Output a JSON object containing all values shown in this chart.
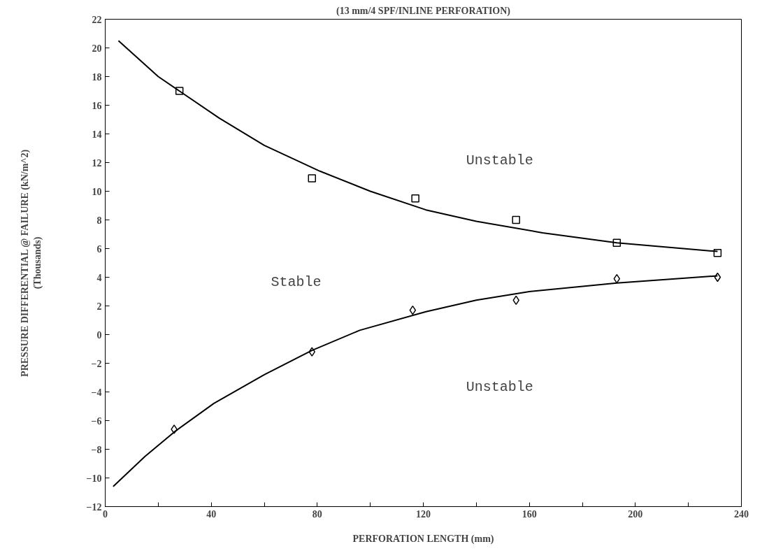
{
  "chart_data": {
    "type": "scatter",
    "title": "(13 mm/4 SPF/INLINE PERFORATION)",
    "xlabel": "PERFORATION LENGTH (mm)",
    "ylabel": "PRESSURE DIFFERENTIAL @ FAILURE (kN/m^2)\n(Thousands)",
    "xlim": [
      0,
      240
    ],
    "ylim": [
      -12,
      22
    ],
    "xticks": [
      0,
      {
        "value": 20,
        "label": null
      },
      40,
      {
        "value": 60,
        "label": null
      },
      80,
      {
        "value": 100,
        "label": null
      },
      120,
      {
        "value": 140,
        "label": null
      },
      160,
      {
        "value": 180,
        "label": null
      },
      200,
      {
        "value": 220,
        "label": null
      },
      240
    ],
    "yticks": [
      -12,
      -10,
      -8,
      -6,
      -4,
      -2,
      0,
      2,
      4,
      6,
      8,
      10,
      12,
      14,
      16,
      18,
      20,
      22
    ],
    "grid": false,
    "series": [
      {
        "marker": "square",
        "color": "#000000",
        "x": [
          28,
          78,
          117,
          155,
          193,
          231
        ],
        "values": [
          17.0,
          10.9,
          9.5,
          8.0,
          6.4,
          5.7
        ]
      },
      {
        "marker": "diamond",
        "color": "#000000",
        "x": [
          26,
          78,
          116,
          155,
          193,
          231
        ],
        "values": [
          -6.6,
          -1.2,
          1.7,
          2.4,
          3.9,
          4.0
        ]
      },
      {
        "type": "line",
        "line_style": "solid",
        "color": "#000000",
        "x": [
          5,
          20,
          43,
          60,
          81,
          100,
          121,
          140,
          165,
          193,
          231
        ],
        "values": [
          20.5,
          18.0,
          15.1,
          13.2,
          11.4,
          10.0,
          8.7,
          7.9,
          7.1,
          6.4,
          5.8
        ]
      },
      {
        "type": "line",
        "line_style": "solid",
        "color": "#000000",
        "x": [
          3,
          15,
          26,
          41,
          60,
          78,
          96,
          121,
          140,
          160,
          193,
          231
        ],
        "values": [
          -10.6,
          -8.5,
          -6.8,
          -4.8,
          -2.8,
          -1.1,
          0.3,
          1.6,
          2.4,
          3.0,
          3.6,
          4.1
        ]
      }
    ],
    "annotations": [
      "Unstable",
      "Stable",
      "Unstable"
    ]
  }
}
